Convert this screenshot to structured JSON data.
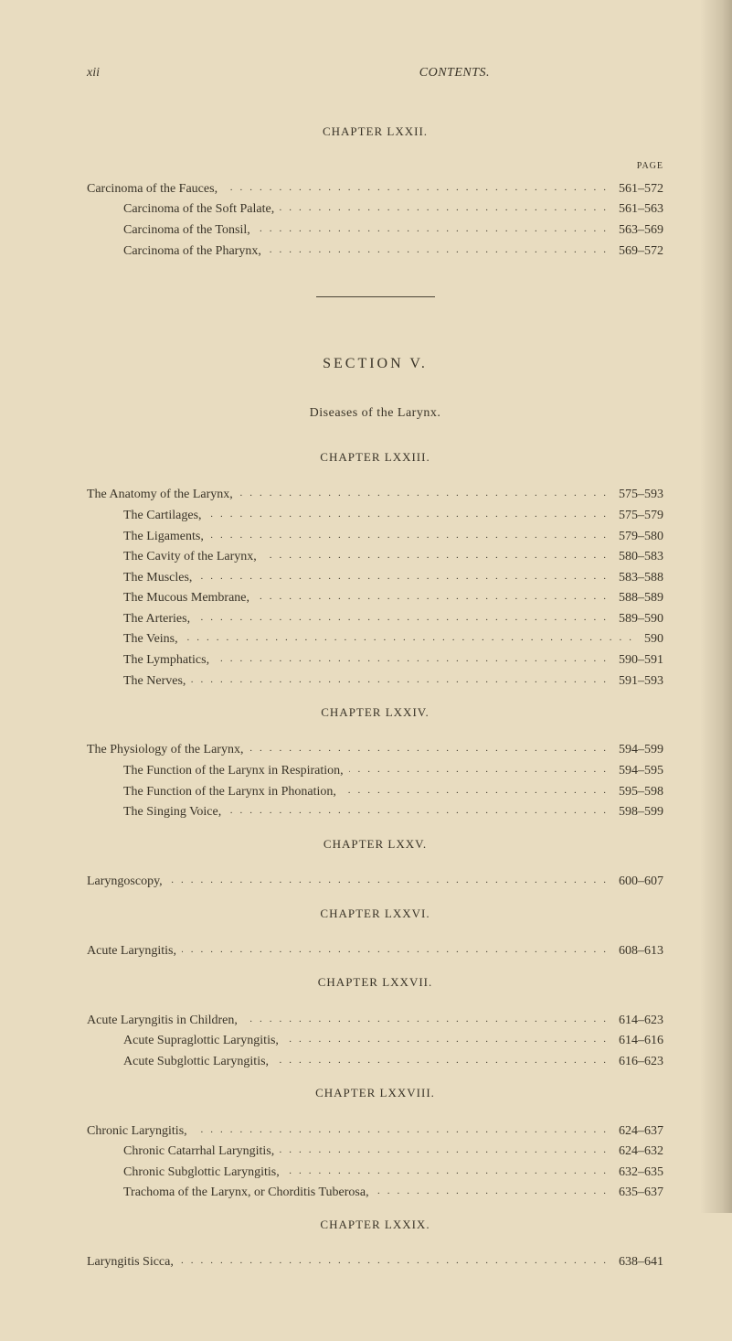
{
  "page_number": "xii",
  "running_title": "CONTENTS.",
  "page_label": "PAGE",
  "colors": {
    "background": "#e8dcc0",
    "text": "#3a3428",
    "dots": "#4a4436"
  },
  "typography": {
    "body_font": "Georgia, Times New Roman, serif",
    "body_size": 14,
    "chapter_header_size": 13,
    "section_header_size": 16,
    "small_caps_size": 10
  },
  "chapters": [
    {
      "title": "CHAPTER LXXII.",
      "show_page_label": true,
      "entries": [
        {
          "label": "Carcinoma of the Fauces,",
          "pages": "561–572",
          "indent": 0
        },
        {
          "label": "Carcinoma of the Soft Palate,",
          "pages": "561–563",
          "indent": 1
        },
        {
          "label": "Carcinoma of the Tonsil,",
          "pages": "563–569",
          "indent": 1
        },
        {
          "label": "Carcinoma of the Pharynx,",
          "pages": "569–572",
          "indent": 1
        }
      ]
    }
  ],
  "section": {
    "header": "SECTION V.",
    "subtitle": "Diseases of the Larynx."
  },
  "section_chapters": [
    {
      "title": "CHAPTER LXXIII.",
      "entries": [
        {
          "label": "The Anatomy of the Larynx,",
          "pages": "575–593",
          "indent": 0
        },
        {
          "label": "The Cartilages,",
          "pages": "575–579",
          "indent": 1
        },
        {
          "label": "The Ligaments,",
          "pages": "579–580",
          "indent": 1
        },
        {
          "label": "The Cavity of the Larynx,",
          "pages": "580–583",
          "indent": 1
        },
        {
          "label": "The Muscles,",
          "pages": "583–588",
          "indent": 1
        },
        {
          "label": "The Mucous Membrane,",
          "pages": "588–589",
          "indent": 1
        },
        {
          "label": "The Arteries,",
          "pages": "589–590",
          "indent": 1
        },
        {
          "label": "The Veins,",
          "pages": "590",
          "indent": 1
        },
        {
          "label": "The Lymphatics,",
          "pages": "590–591",
          "indent": 1
        },
        {
          "label": "The Nerves,",
          "pages": "591–593",
          "indent": 1
        }
      ]
    },
    {
      "title": "CHAPTER LXXIV.",
      "entries": [
        {
          "label": "The Physiology of the Larynx,",
          "pages": "594–599",
          "indent": 0
        },
        {
          "label": "The Function of the Larynx in Respiration,",
          "pages": "594–595",
          "indent": 1
        },
        {
          "label": "The Function of the Larynx in Phonation,",
          "pages": "595–598",
          "indent": 1
        },
        {
          "label": "The Singing Voice,",
          "pages": "598–599",
          "indent": 1
        }
      ]
    },
    {
      "title": "CHAPTER LXXV.",
      "entries": [
        {
          "label": "Laryngoscopy,",
          "pages": "600–607",
          "indent": 0
        }
      ]
    },
    {
      "title": "CHAPTER LXXVI.",
      "entries": [
        {
          "label": "Acute Laryngitis,",
          "pages": "608–613",
          "indent": 0
        }
      ]
    },
    {
      "title": "CHAPTER LXXVII.",
      "entries": [
        {
          "label": "Acute Laryngitis in Children,",
          "pages": "614–623",
          "indent": 0
        },
        {
          "label": "Acute Supraglottic Laryngitis,",
          "pages": "614–616",
          "indent": 1
        },
        {
          "label": "Acute Subglottic Laryngitis,",
          "pages": "616–623",
          "indent": 1
        }
      ]
    },
    {
      "title": "CHAPTER LXXVIII.",
      "entries": [
        {
          "label": "Chronic Laryngitis,",
          "pages": "624–637",
          "indent": 0
        },
        {
          "label": "Chronic Catarrhal Laryngitis,",
          "pages": "624–632",
          "indent": 1
        },
        {
          "label": "Chronic Subglottic Laryngitis,",
          "pages": "632–635",
          "indent": 1
        },
        {
          "label": "Trachoma of the Larynx, or Chorditis Tuberosa,",
          "pages": "635–637",
          "indent": 1
        }
      ]
    },
    {
      "title": "CHAPTER LXXIX.",
      "entries": [
        {
          "label": "Laryngitis Sicca,",
          "pages": "638–641",
          "indent": 0
        }
      ]
    }
  ]
}
